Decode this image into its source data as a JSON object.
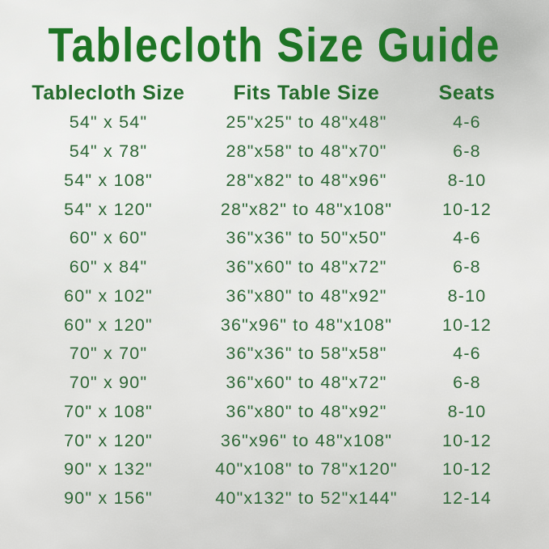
{
  "title": "Tablecloth Size Guide",
  "colors": {
    "title_green": "#1d7324",
    "header_green": "#256b2c",
    "body_green": "#2e6636",
    "background_silver": "#d8d9d5"
  },
  "chart_data": {
    "type": "table",
    "title": "Tablecloth Size Guide",
    "columns": [
      "Tablecloth Size",
      "Fits Table Size",
      "Seats"
    ],
    "rows": [
      [
        "54\" x 54\"",
        "25\"x25\" to 48\"x48\"",
        "4-6"
      ],
      [
        "54\" x 78\"",
        "28\"x58\" to 48\"x70\"",
        "6-8"
      ],
      [
        "54\" x 108\"",
        "28\"x82\" to 48\"x96\"",
        "8-10"
      ],
      [
        "54\" x 120\"",
        "28\"x82\" to 48\"x108\"",
        "10-12"
      ],
      [
        "60\" x 60\"",
        "36\"x36\" to 50\"x50\"",
        "4-6"
      ],
      [
        "60\" x 84\"",
        "36\"x60\" to 48\"x72\"",
        "6-8"
      ],
      [
        "60\" x 102\"",
        "36\"x80\" to 48\"x92\"",
        "8-10"
      ],
      [
        "60\" x 120\"",
        "36\"x96\" to 48\"x108\"",
        "10-12"
      ],
      [
        "70\" x 70\"",
        "36\"x36\" to 58\"x58\"",
        "4-6"
      ],
      [
        "70\" x 90\"",
        "36\"x60\" to 48\"x72\"",
        "6-8"
      ],
      [
        "70\" x 108\"",
        "36\"x80\" to 48\"x92\"",
        "8-10"
      ],
      [
        "70\" x 120\"",
        "36\"x96\" to 48\"x108\"",
        "10-12"
      ],
      [
        "90\" x 132\"",
        "40\"x108\" to 78\"x120\"",
        "10-12"
      ],
      [
        "90\" x 156\"",
        "40\"x132\" to 52\"x144\"",
        "12-14"
      ]
    ],
    "layout": "three centered columns, 14 data rows, no gridlines, silver foil background"
  }
}
